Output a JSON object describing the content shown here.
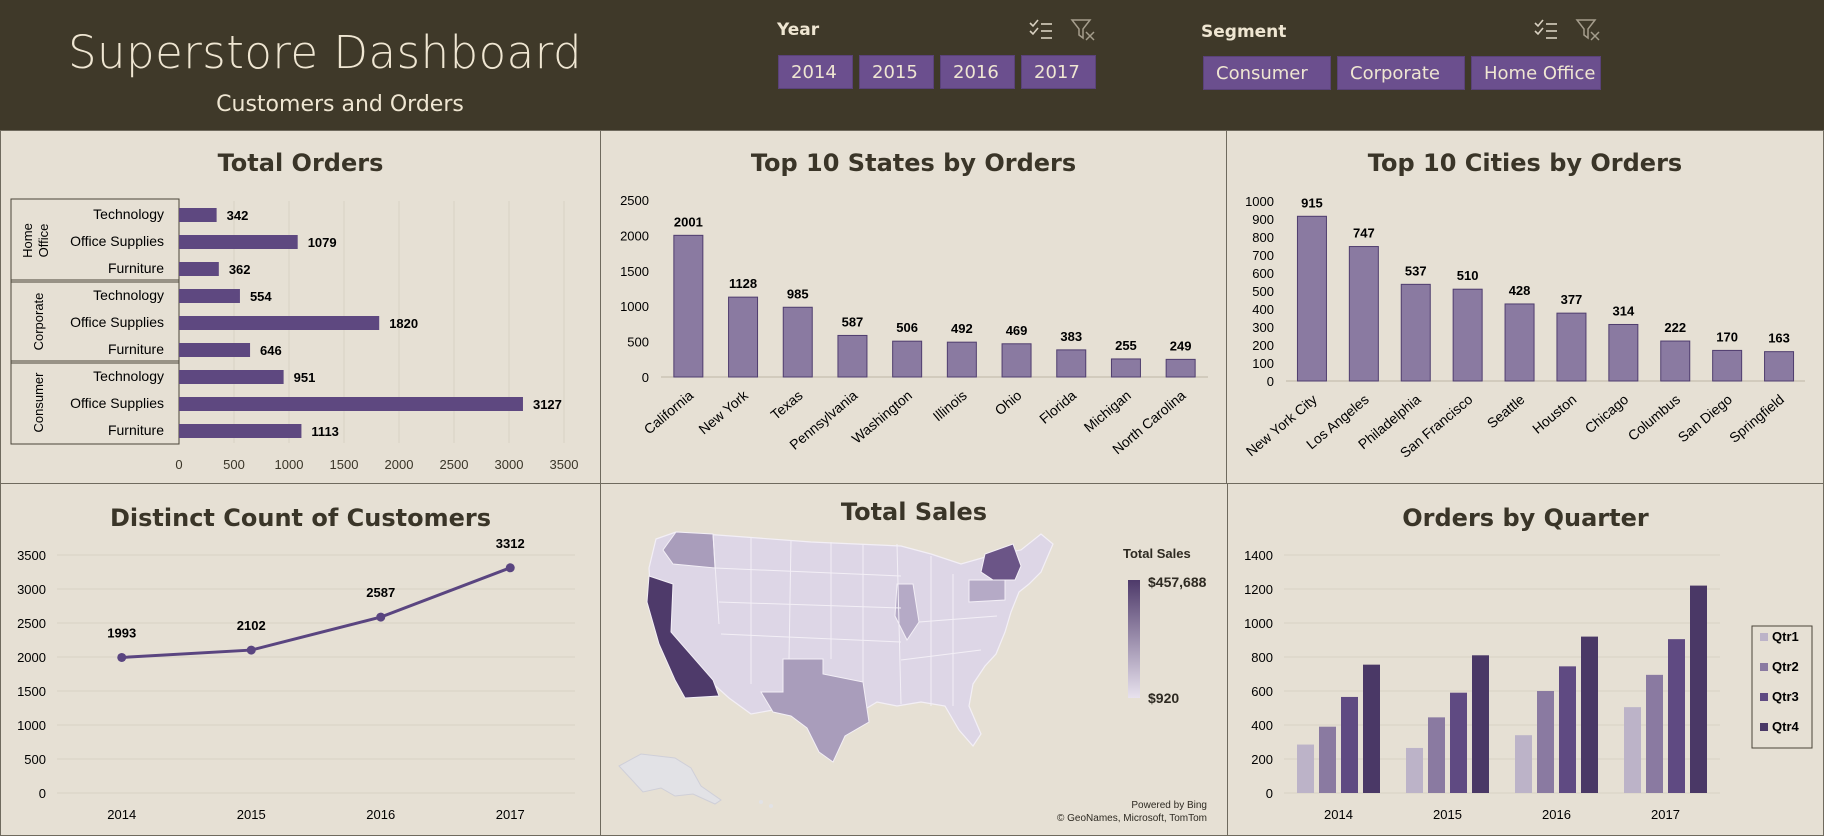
{
  "header": {
    "title": "Superstore Dashboard",
    "subtitle": "Customers and Orders"
  },
  "slicers": {
    "year": {
      "label": "Year",
      "options": [
        "2014",
        "2015",
        "2016",
        "2017"
      ]
    },
    "segment": {
      "label": "Segment",
      "options": [
        "Consumer",
        "Corporate",
        "Home Office"
      ]
    }
  },
  "map": {
    "title": "Total Sales",
    "legend_title": "Total Sales",
    "legend_max": "$457,688",
    "legend_min": "$920",
    "credit1": "Powered by Bing",
    "credit2": "© GeoNames, Microsoft, TomTom"
  },
  "colors": {
    "header": "#3f3929",
    "accent": "#6b4f8e",
    "bar": "#8a7aa1",
    "line": "#5a4580",
    "background": "#e6e0d4"
  },
  "chart_data": [
    {
      "type": "bar",
      "orientation": "horizontal",
      "title": "Total Orders",
      "groups": [
        {
          "name": "Home Office",
          "categories": [
            "Technology",
            "Office Supplies",
            "Furniture"
          ],
          "values": [
            342,
            1079,
            362
          ]
        },
        {
          "name": "Corporate",
          "categories": [
            "Technology",
            "Office Supplies",
            "Furniture"
          ],
          "values": [
            554,
            1820,
            646
          ]
        },
        {
          "name": "Consumer",
          "categories": [
            "Technology",
            "Office Supplies",
            "Furniture"
          ],
          "values": [
            951,
            3127,
            1113
          ]
        }
      ],
      "xlim": [
        0,
        3500
      ],
      "xticks": [
        0,
        500,
        1000,
        1500,
        2000,
        2500,
        3000,
        3500
      ]
    },
    {
      "type": "bar",
      "title": "Top 10 States by Orders",
      "categories": [
        "California",
        "New York",
        "Texas",
        "Pennsylvania",
        "Washington",
        "Illinois",
        "Ohio",
        "Florida",
        "Michigan",
        "North Carolina"
      ],
      "values": [
        2001,
        1128,
        985,
        587,
        506,
        492,
        469,
        383,
        255,
        249
      ],
      "ylim": [
        0,
        2500
      ],
      "yticks": [
        0,
        500,
        1000,
        1500,
        2000,
        2500
      ]
    },
    {
      "type": "bar",
      "title": "Top 10 Cities by Orders",
      "categories": [
        "New York City",
        "Los Angeles",
        "Philadelphia",
        "San Francisco",
        "Seattle",
        "Houston",
        "Chicago",
        "Columbus",
        "San Diego",
        "Springfield"
      ],
      "values": [
        915,
        747,
        537,
        510,
        428,
        377,
        314,
        222,
        170,
        163
      ],
      "ylim": [
        0,
        1000
      ],
      "yticks": [
        0,
        100,
        200,
        300,
        400,
        500,
        600,
        700,
        800,
        900,
        1000
      ]
    },
    {
      "type": "line",
      "title": "Distinct Count of Customers",
      "categories": [
        "2014",
        "2015",
        "2016",
        "2017"
      ],
      "values": [
        1993,
        2102,
        2587,
        3312
      ],
      "ylim": [
        0,
        3500
      ],
      "yticks": [
        0,
        500,
        1000,
        1500,
        2000,
        2500,
        3000,
        3500
      ]
    },
    {
      "type": "bar",
      "title": "Orders by Quarter",
      "categories": [
        "2014",
        "2015",
        "2016",
        "2017"
      ],
      "series": [
        {
          "name": "Qtr1",
          "color": "#bcb3c8",
          "values": [
            285,
            265,
            340,
            505
          ]
        },
        {
          "name": "Qtr2",
          "color": "#8a7aa1",
          "values": [
            390,
            445,
            600,
            695
          ]
        },
        {
          "name": "Qtr3",
          "color": "#5f4a82",
          "values": [
            565,
            590,
            745,
            905
          ]
        },
        {
          "name": "Qtr4",
          "color": "#4a3866",
          "values": [
            755,
            810,
            920,
            1220
          ]
        }
      ],
      "ylim": [
        0,
        1400
      ],
      "yticks": [
        0,
        200,
        400,
        600,
        800,
        1000,
        1200,
        1400
      ],
      "legend": "right"
    }
  ]
}
